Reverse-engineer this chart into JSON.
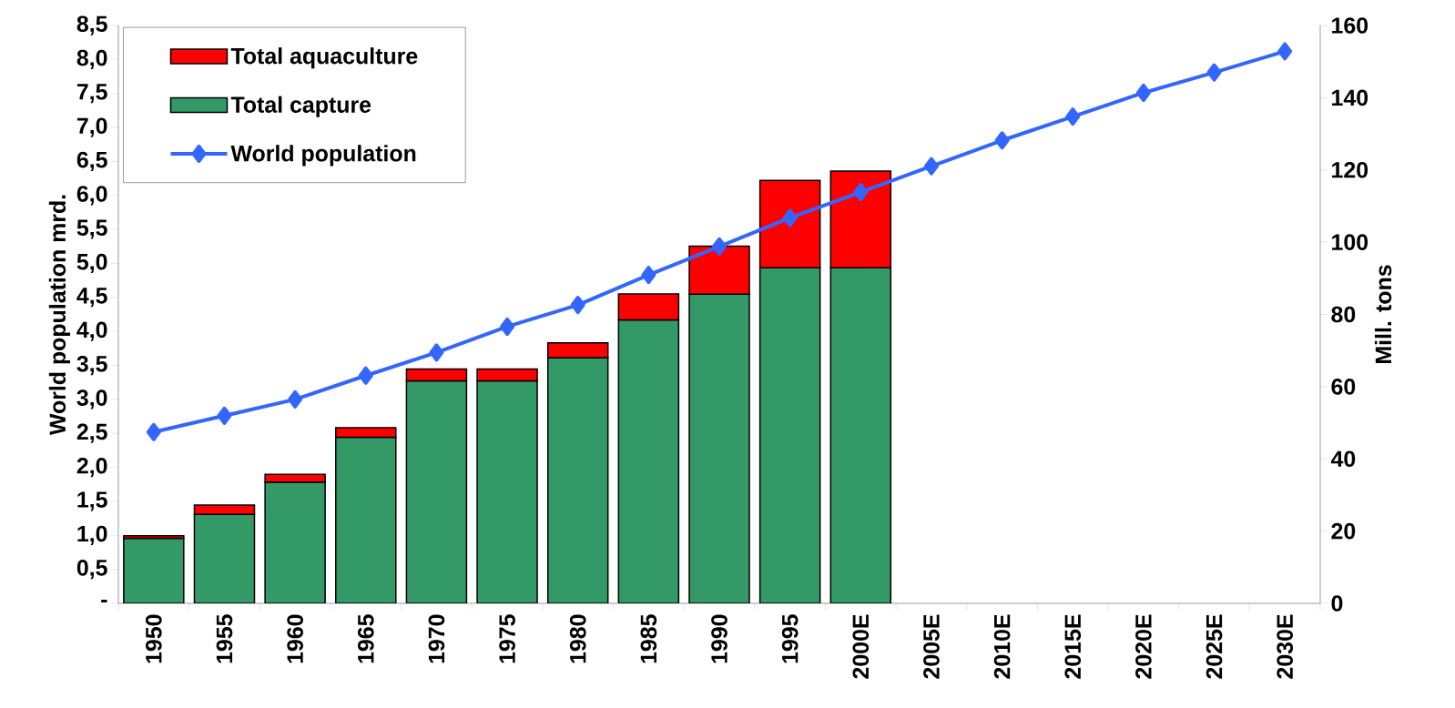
{
  "chart_data": {
    "type": "bar",
    "stacked": true,
    "categories": [
      "1950",
      "1955",
      "1960",
      "1965",
      "1970",
      "1975",
      "1980",
      "1985",
      "1990",
      "1995",
      "2000E",
      "2005E",
      "2010E",
      "2015E",
      "2020E",
      "2025E",
      "2030E"
    ],
    "series": [
      {
        "name": "Total capture",
        "axis": "y2",
        "color": "#339966",
        "values": [
          18,
          24.6,
          33.6,
          46,
          61.6,
          61.6,
          68,
          78.5,
          85.6,
          92.9,
          92.9,
          null,
          null,
          null,
          null,
          null,
          null
        ]
      },
      {
        "name": "Total aquaculture",
        "axis": "y2",
        "color": "#ff0000",
        "values": [
          0.7,
          2.6,
          2.1,
          2.6,
          3.3,
          3.3,
          4.1,
          7.2,
          13.3,
          24.2,
          26.8,
          null,
          null,
          null,
          null,
          null,
          null
        ]
      },
      {
        "name": "World population",
        "type": "line",
        "axis": "y",
        "color": "#3366ff",
        "values": [
          2.52,
          2.76,
          3.0,
          3.35,
          3.69,
          4.07,
          4.39,
          4.83,
          5.25,
          5.67,
          6.05,
          6.43,
          6.81,
          7.16,
          7.51,
          7.81,
          8.12
        ]
      }
    ],
    "ylabel": "World population mrd.",
    "y2label": "Mill. tons",
    "ylim": [
      0,
      8.5
    ],
    "yticks": [
      {
        "value": 0,
        "label": "-"
      },
      {
        "value": 0.5,
        "label": "0,5"
      },
      {
        "value": 1,
        "label": "1,0"
      },
      {
        "value": 1.5,
        "label": "1,5"
      },
      {
        "value": 2,
        "label": "2,0"
      },
      {
        "value": 2.5,
        "label": "2,5"
      },
      {
        "value": 3,
        "label": "3,0"
      },
      {
        "value": 3.5,
        "label": "3,5"
      },
      {
        "value": 4,
        "label": "4,0"
      },
      {
        "value": 4.5,
        "label": "4,5"
      },
      {
        "value": 5,
        "label": "5,0"
      },
      {
        "value": 5.5,
        "label": "5,5"
      },
      {
        "value": 6,
        "label": "6,0"
      },
      {
        "value": 6.5,
        "label": "6,5"
      },
      {
        "value": 7,
        "label": "7,0"
      },
      {
        "value": 7.5,
        "label": "7,5"
      },
      {
        "value": 8,
        "label": "8,0"
      },
      {
        "value": 8.5,
        "label": "8,5"
      }
    ],
    "y2lim": [
      0,
      160
    ],
    "y2ticks": [
      0,
      20,
      40,
      60,
      80,
      100,
      120,
      140,
      160
    ],
    "legend": "top left",
    "marker": "diamond",
    "line_style": "solid"
  }
}
